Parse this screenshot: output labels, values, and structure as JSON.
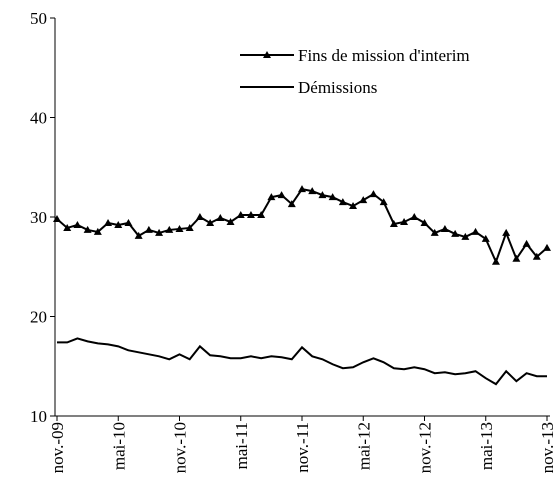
{
  "chart_data": {
    "type": "line",
    "categories": [
      "nov.-09",
      null,
      null,
      null,
      null,
      null,
      "mai-10",
      null,
      null,
      null,
      null,
      null,
      "nov.-10",
      null,
      null,
      null,
      null,
      null,
      "mai-11",
      null,
      null,
      null,
      null,
      null,
      "nov.-11",
      null,
      null,
      null,
      null,
      null,
      "mai-12",
      null,
      null,
      null,
      null,
      null,
      "nov.-12",
      null,
      null,
      null,
      null,
      null,
      "mai-13",
      null,
      null,
      null,
      null,
      null,
      "nov.-13"
    ],
    "series": [
      {
        "name": "Fins de mission d'interim",
        "color": "#000000",
        "marker": "triangle",
        "values": [
          29.8,
          28.9,
          29.2,
          28.7,
          28.5,
          29.4,
          29.2,
          29.4,
          28.1,
          28.7,
          28.4,
          28.7,
          28.8,
          28.9,
          30.0,
          29.4,
          29.9,
          29.5,
          30.2,
          30.2,
          30.2,
          32.0,
          32.2,
          31.3,
          32.8,
          32.6,
          32.2,
          32.0,
          31.5,
          31.1,
          31.7,
          32.3,
          31.5,
          29.3,
          29.5,
          30.0,
          29.4,
          28.4,
          28.8,
          28.3,
          28.0,
          28.5,
          27.8,
          25.5,
          28.4,
          25.8,
          27.3,
          26.0,
          26.9
        ]
      },
      {
        "name": "Démissions",
        "color": "#000000",
        "marker": "none",
        "values": [
          17.4,
          17.4,
          17.8,
          17.5,
          17.3,
          17.2,
          17.0,
          16.6,
          16.4,
          16.2,
          16.0,
          15.7,
          16.2,
          15.7,
          17.0,
          16.1,
          16.0,
          15.8,
          15.8,
          16.0,
          15.8,
          16.0,
          15.9,
          15.7,
          16.9,
          16.0,
          15.7,
          15.2,
          14.8,
          14.9,
          15.4,
          15.8,
          15.4,
          14.8,
          14.7,
          14.9,
          14.7,
          14.3,
          14.4,
          14.2,
          14.3,
          14.5,
          13.8,
          13.2,
          14.5,
          13.5,
          14.3,
          14.0,
          14.0
        ]
      }
    ],
    "ylim": [
      10,
      50
    ],
    "yticks": [
      10,
      20,
      30,
      40,
      50
    ],
    "grid": false,
    "legend": "upper right"
  }
}
